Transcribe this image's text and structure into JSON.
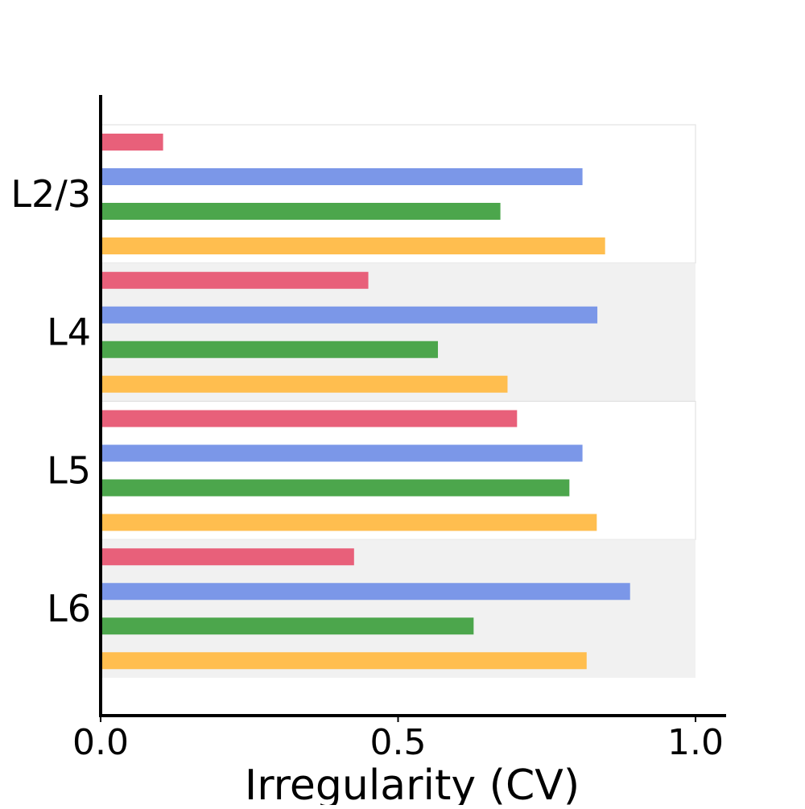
{
  "chart_data": {
    "type": "bar",
    "orientation": "horizontal",
    "title": "",
    "xlabel": "Irregularity (CV)",
    "ylabel": "",
    "xlim": [
      0.0,
      1.05
    ],
    "xticks": [
      {
        "value": 0.0,
        "label": "0.0"
      },
      {
        "value": 0.5,
        "label": "0.5"
      },
      {
        "value": 1.0,
        "label": "1.0"
      }
    ],
    "categories": [
      "L2/3",
      "L4",
      "L5",
      "L6"
    ],
    "series_colors": [
      "#e8607a",
      "#7b97e8",
      "#4ca64c",
      "#ffbe4f"
    ],
    "band_colors": [
      "#ffffff",
      "#f1f1f1"
    ],
    "values": [
      [
        0.105,
        0.81,
        0.672,
        0.848
      ],
      [
        0.45,
        0.835,
        0.567,
        0.684
      ],
      [
        0.7,
        0.81,
        0.788,
        0.834
      ],
      [
        0.426,
        0.89,
        0.627,
        0.817
      ]
    ],
    "grid": false,
    "legend": "none"
  }
}
